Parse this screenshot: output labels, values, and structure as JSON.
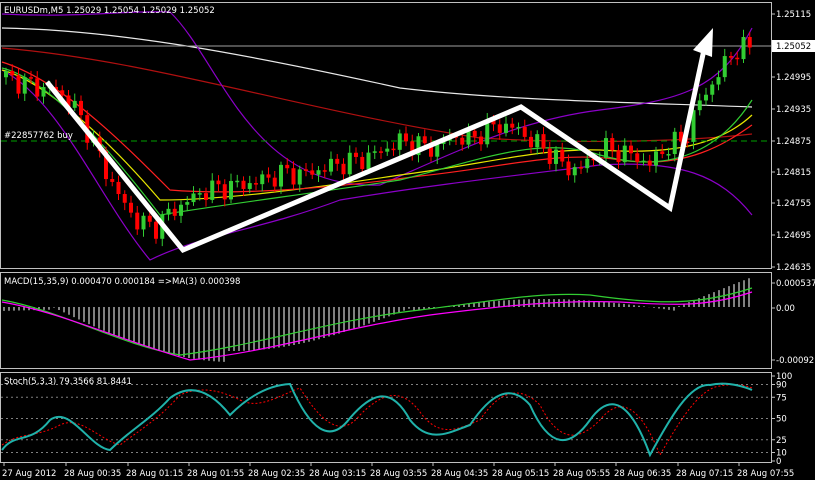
{
  "main": {
    "symbol_info": "EURUSDm,M5  1.25029 1.25054 1.25029 1.25052",
    "order_label": "#22857762 buy",
    "price_ticks": [
      "1.25115",
      "1.25052",
      "1.24995",
      "1.24935",
      "1.24875",
      "1.24815",
      "1.24755",
      "1.24695",
      "1.24635"
    ],
    "current_price": "1.25052"
  },
  "macd": {
    "label": "MACD(15,35,9) 0.000470 0.000184  =>MA(3) 0.000398",
    "ticks": [
      "0.000537",
      "0.00",
      "-0.00092"
    ]
  },
  "stoch": {
    "label": "Stoch(5,3,3) 79.3566 81.8441",
    "ticks": [
      "100",
      "90",
      "75",
      "50",
      "25",
      "10",
      "0"
    ]
  },
  "time_axis": {
    "labels": [
      "27 Aug 2012",
      "28 Aug 00:35",
      "28 Aug 01:15",
      "28 Aug 01:55",
      "28 Aug 02:35",
      "28 Aug 03:15",
      "28 Aug 03:55",
      "28 Aug 04:35",
      "28 Aug 05:15",
      "28 Aug 05:55",
      "28 Aug 06:35",
      "28 Aug 07:15",
      "28 Aug 07:55"
    ]
  },
  "colors": {
    "bull": "#32cd32",
    "bear": "#ff0000",
    "order_line": "#00a000",
    "macd_hist": "#ffffff",
    "macd_signal": "#32cd32",
    "macd_ma": "#ff00ff",
    "stoch_main": "#20b2aa",
    "stoch_signal": "#ff0000"
  },
  "chart_data": {
    "type": "candlestick",
    "price_range": [
      1.24635,
      1.25115
    ],
    "close_path": [
      1.24995,
      1.24985,
      1.24975,
      1.2497,
      1.24945,
      1.2489,
      1.2482,
      1.2476,
      1.2472,
      1.2471,
      1.2474,
      1.2476,
      1.2478,
      1.24785,
      1.2479,
      1.24795,
      1.24805,
      1.24815,
      1.2481,
      1.2482,
      1.2483,
      1.24835,
      1.24845,
      1.2486,
      1.24875,
      1.24865,
      1.2486,
      1.24885,
      1.24875,
      1.24895,
      1.24905,
      1.24895,
      1.2487,
      1.2485,
      1.2482,
      1.24825,
      1.2486,
      1.24855,
      1.24845,
      1.2483,
      1.24865,
      1.24875,
      1.2495,
      1.24995,
      1.25045,
      1.25052
    ]
  }
}
